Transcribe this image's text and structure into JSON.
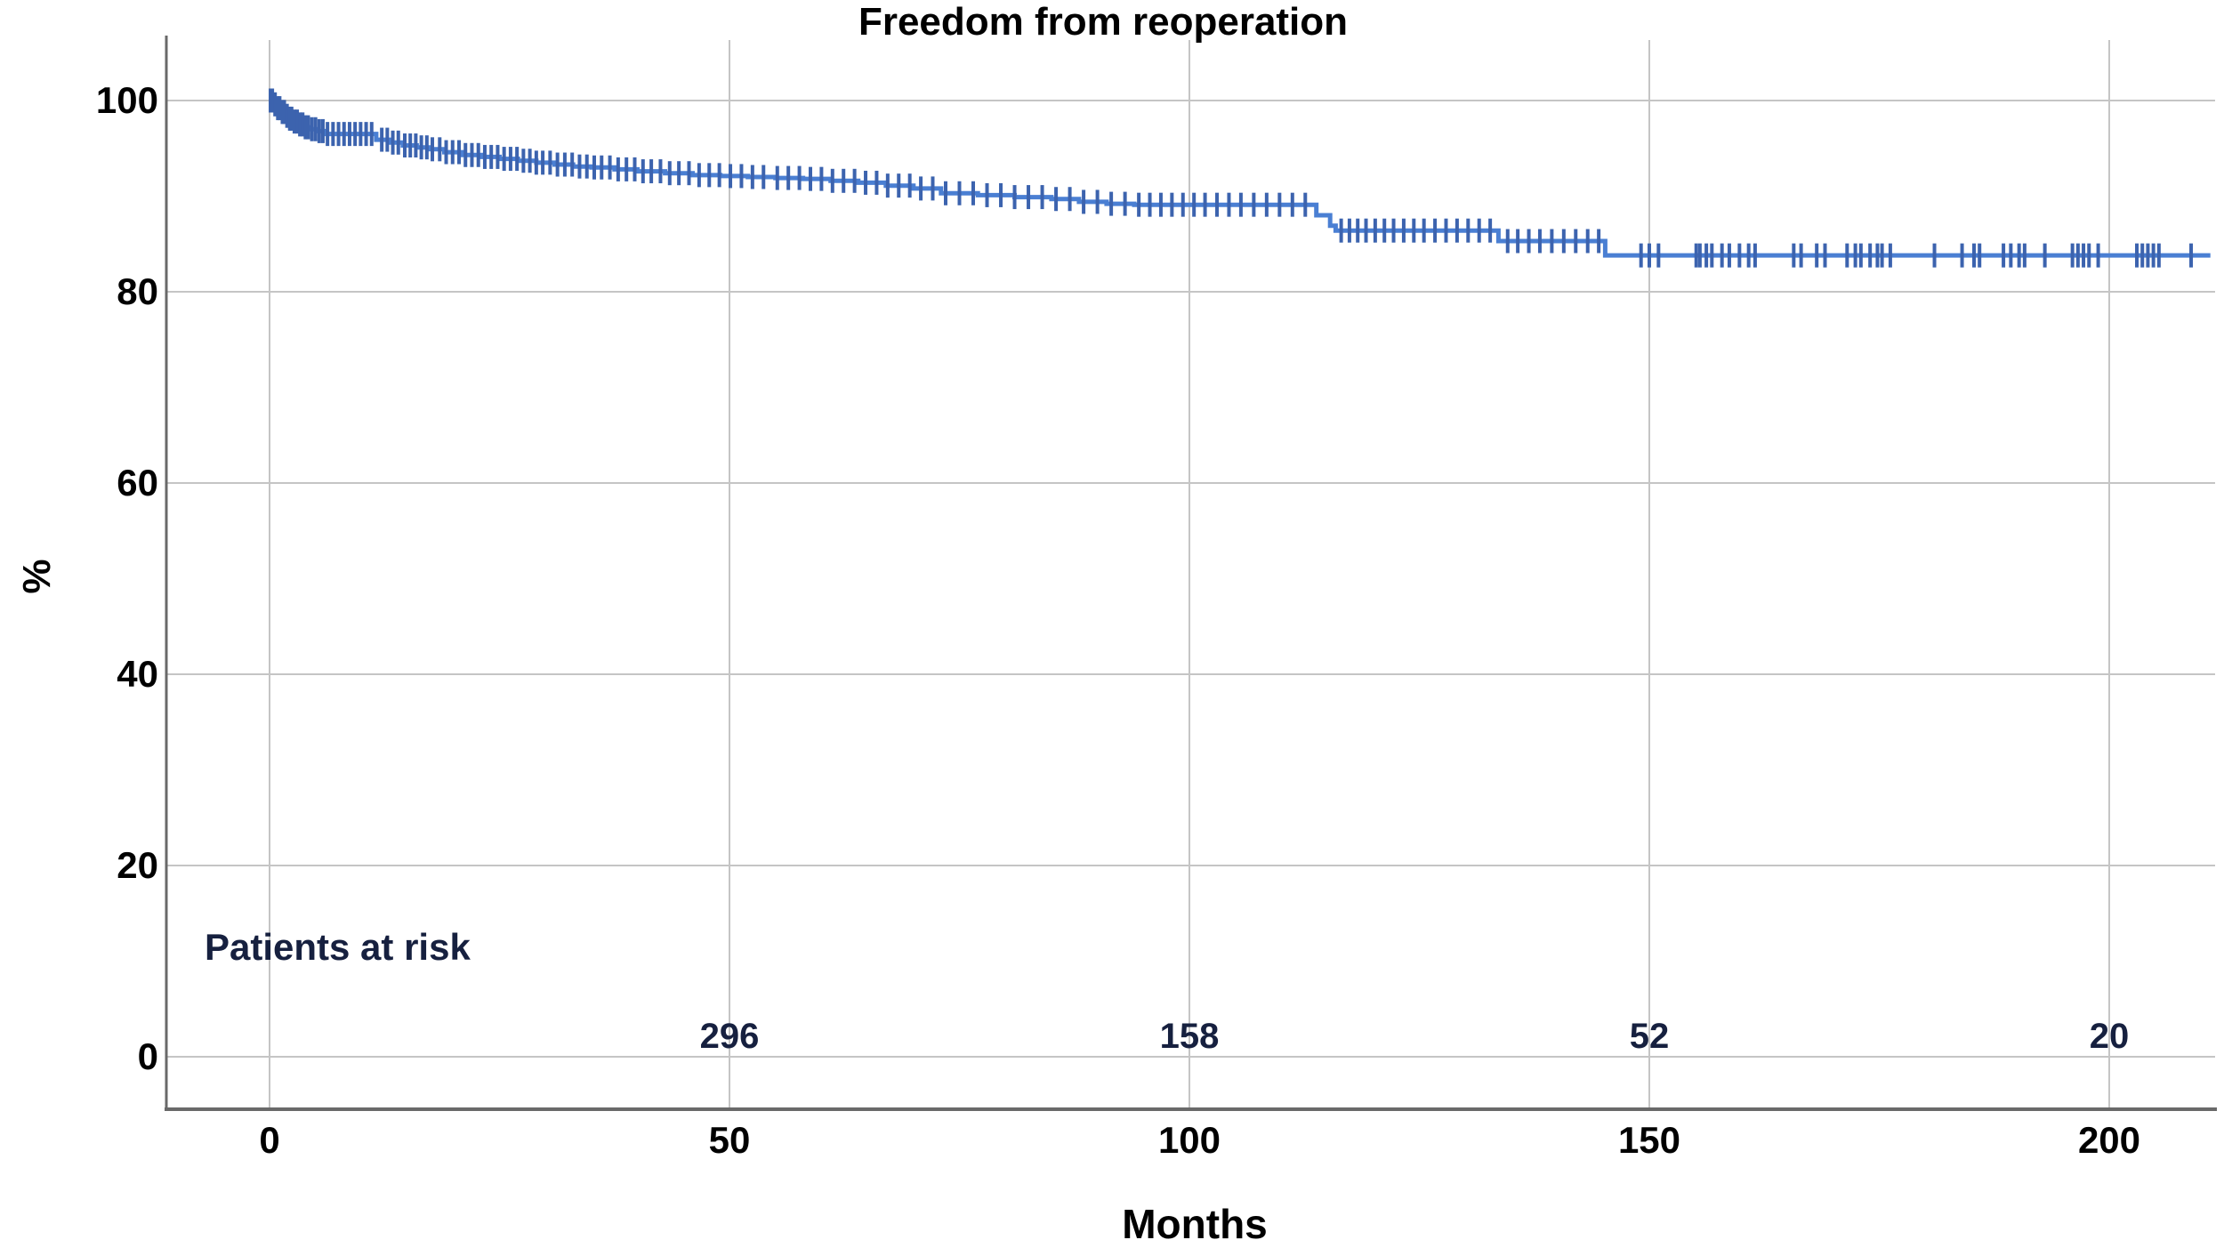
{
  "chart_data": {
    "type": "line",
    "subtype": "kaplan_meier_step",
    "title": "Freedom from reoperation",
    "xlabel": "Months",
    "ylabel": "%",
    "xlim": [
      0,
      211
    ],
    "ylim": [
      0,
      100
    ],
    "x_ticks": [
      0,
      50,
      100,
      150,
      200
    ],
    "y_ticks": [
      0,
      20,
      40,
      60,
      80,
      100
    ],
    "grid": true,
    "legend": false,
    "colors": {
      "curve": "#4a7fd3",
      "censor": "#3c63ae",
      "grid": "#c5c5c5",
      "axis": "#696969",
      "text": "#000000",
      "risk_text": "#16203f"
    },
    "series": [
      {
        "name": "Freedom from reoperation",
        "color": "#4a7fd3",
        "step_points": [
          [
            0,
            100
          ],
          [
            0.5,
            99.6
          ],
          [
            0.9,
            99.2
          ],
          [
            1.3,
            98.8
          ],
          [
            1.7,
            98.4
          ],
          [
            2.1,
            98.1
          ],
          [
            2.6,
            97.8
          ],
          [
            3.2,
            97.5
          ],
          [
            3.8,
            97.2
          ],
          [
            4.5,
            97.0
          ],
          [
            5.3,
            96.8
          ],
          [
            6,
            96.5
          ],
          [
            11.6,
            95.9
          ],
          [
            13,
            95.6
          ],
          [
            14.5,
            95.3
          ],
          [
            16,
            95.1
          ],
          [
            17.5,
            94.9
          ],
          [
            19,
            94.6
          ],
          [
            21,
            94.3
          ],
          [
            23,
            94.1
          ],
          [
            25,
            93.9
          ],
          [
            27,
            93.7
          ],
          [
            29,
            93.5
          ],
          [
            31,
            93.3
          ],
          [
            33,
            93.1
          ],
          [
            35,
            93.0
          ],
          [
            37.5,
            92.8
          ],
          [
            40,
            92.6
          ],
          [
            43,
            92.4
          ],
          [
            46,
            92.2
          ],
          [
            49,
            92.1
          ],
          [
            52,
            92.0
          ],
          [
            55,
            91.9
          ],
          [
            58,
            91.8
          ],
          [
            61,
            91.6
          ],
          [
            64,
            91.4
          ],
          [
            67,
            91.1
          ],
          [
            70,
            90.8
          ],
          [
            73,
            90.3
          ],
          [
            77,
            90.1
          ],
          [
            81,
            89.9
          ],
          [
            85,
            89.7
          ],
          [
            88,
            89.4
          ],
          [
            91,
            89.2
          ],
          [
            94,
            89.1
          ],
          [
            113.8,
            88.0
          ],
          [
            115.3,
            86.9
          ],
          [
            115.9,
            86.4
          ],
          [
            133.6,
            85.3
          ],
          [
            145.2,
            83.8
          ],
          [
            211,
            83.8
          ]
        ],
        "censor_months": [
          0.1,
          0.3,
          0.6,
          0.9,
          1.1,
          1.4,
          1.6,
          1.9,
          2.2,
          2.4,
          2.7,
          3.0,
          3.3,
          3.6,
          3.9,
          4.2,
          4.6,
          5.0,
          5.4,
          5.8,
          6.3,
          6.9,
          7.5,
          8.1,
          8.7,
          9.3,
          9.9,
          10.5,
          11.1,
          12.2,
          12.8,
          13.4,
          14.0,
          14.7,
          15.3,
          15.9,
          16.5,
          17.1,
          17.7,
          18.5,
          19.2,
          19.9,
          20.6,
          21.3,
          22.0,
          22.7,
          23.4,
          24.1,
          24.8,
          25.5,
          26.2,
          26.9,
          27.6,
          28.3,
          29.0,
          29.7,
          30.5,
          31.3,
          32.1,
          32.9,
          33.7,
          34.5,
          35.3,
          36.1,
          37.0,
          37.9,
          38.8,
          39.7,
          40.6,
          41.5,
          42.5,
          43.5,
          44.5,
          45.6,
          46.7,
          47.8,
          48.9,
          50.1,
          51.3,
          52.5,
          53.7,
          55.2,
          56.4,
          57.6,
          58.8,
          60.0,
          61.2,
          62.4,
          63.6,
          64.8,
          66.0,
          67.2,
          68.4,
          69.6,
          70.8,
          72.1,
          73.5,
          75.0,
          76.5,
          78.0,
          79.5,
          81.0,
          82.5,
          84.0,
          85.5,
          87.0,
          88.5,
          90.0,
          91.5,
          93.0,
          94.5,
          95.7,
          96.9,
          98.1,
          99.3,
          100.5,
          101.7,
          103.0,
          104.3,
          105.6,
          107.0,
          108.4,
          109.8,
          111.2,
          112.6,
          116.5,
          117.4,
          118.3,
          119.2,
          120.2,
          121.2,
          122.2,
          123.3,
          124.4,
          125.5,
          126.7,
          127.9,
          129.1,
          130.3,
          131.5,
          132.7,
          134.6,
          135.7,
          136.9,
          138.1,
          139.4,
          140.7,
          142.0,
          143.3,
          144.5,
          149.1,
          150.0,
          151.0,
          155.1,
          155.5,
          156.2,
          156.8,
          157.9,
          158.7,
          159.8,
          160.8,
          161.5,
          165.7,
          166.5,
          168.2,
          169.1,
          171.5,
          172.4,
          173.0,
          174.0,
          174.8,
          175.3,
          176.2,
          181.0,
          184.0,
          185.3,
          185.9,
          188.5,
          189.3,
          190.2,
          190.8,
          193.0,
          196.0,
          196.6,
          197.2,
          197.8,
          198.8,
          203.0,
          203.6,
          204.2,
          204.8,
          205.4,
          208.9
        ]
      }
    ],
    "at_risk": {
      "label": "Patients at risk",
      "months": [
        50,
        100,
        150,
        200
      ],
      "counts": [
        296,
        158,
        52,
        20
      ]
    }
  }
}
